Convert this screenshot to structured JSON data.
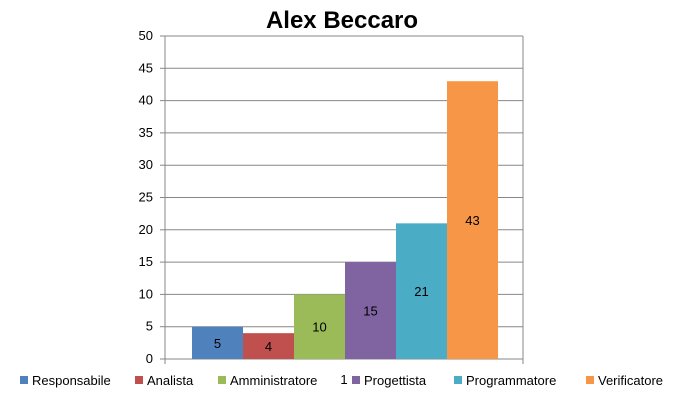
{
  "chart_data": {
    "type": "bar",
    "title": "Alex Beccaro",
    "xlabel": "",
    "ylabel": "",
    "categories": [
      "1"
    ],
    "ylim": [
      0,
      50
    ],
    "yticks": [
      0,
      5,
      10,
      15,
      20,
      25,
      30,
      35,
      40,
      45,
      50
    ],
    "grid": true,
    "legend_position": "bottom",
    "data_labels": true,
    "series": [
      {
        "name": "Responsabile",
        "values": [
          5
        ],
        "color": "#4f81bd"
      },
      {
        "name": "Analista",
        "values": [
          4
        ],
        "color": "#c0504d"
      },
      {
        "name": "Amministratore",
        "values": [
          10
        ],
        "color": "#9bbb59"
      },
      {
        "name": "Progettista",
        "values": [
          15
        ],
        "color": "#8064a2"
      },
      {
        "name": "Programmatore",
        "values": [
          21
        ],
        "color": "#4bacc6"
      },
      {
        "name": "Verificatore",
        "values": [
          43
        ],
        "color": "#f79646"
      }
    ]
  }
}
